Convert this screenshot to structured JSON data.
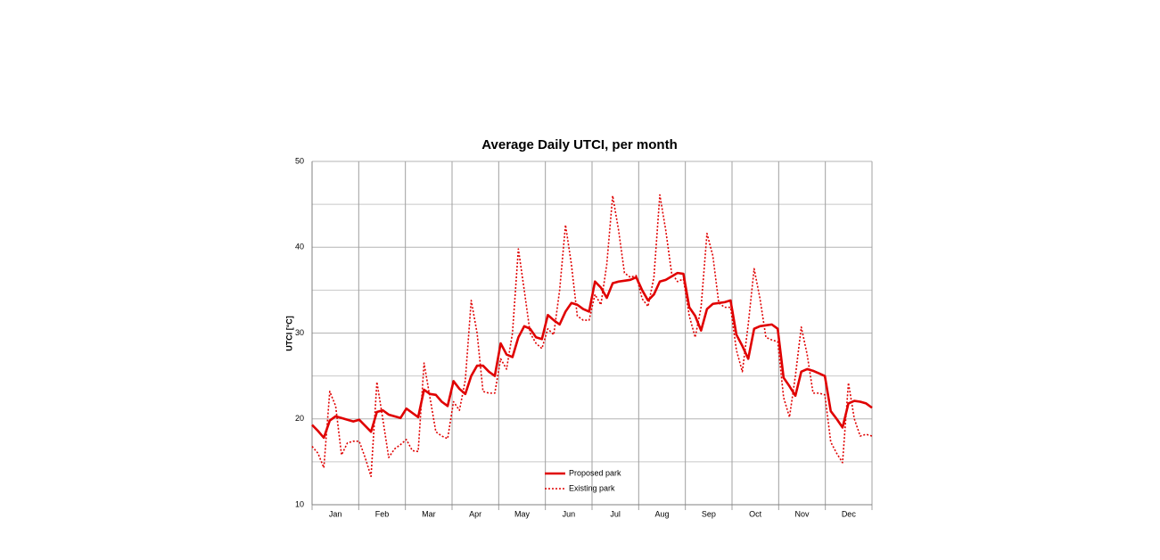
{
  "chart_data": {
    "type": "line",
    "title": "Average Daily UTCI, per month",
    "y_label": "UTCI [°C]",
    "categories": [
      null,
      null,
      null,
      null,
      "Jan",
      null,
      null,
      null,
      null,
      null,
      null,
      null,
      "Feb",
      null,
      null,
      null,
      null,
      null,
      null,
      null,
      "Mar",
      null,
      null,
      null,
      null,
      null,
      null,
      null,
      "Apr",
      null,
      null,
      null,
      null,
      null,
      null,
      null,
      "May",
      null,
      null,
      null,
      null,
      null,
      null,
      null,
      "Jun",
      null,
      null,
      null,
      null,
      null,
      null,
      null,
      "Jul",
      null,
      null,
      null,
      null,
      null,
      null,
      null,
      "Aug",
      null,
      null,
      null,
      null,
      null,
      null,
      null,
      "Sep",
      null,
      null,
      null,
      null,
      null,
      null,
      null,
      "Oct",
      null,
      null,
      null,
      null,
      null,
      null,
      null,
      "Nov",
      null,
      null,
      null,
      null,
      null,
      null,
      null,
      "Dec",
      null,
      null,
      null
    ],
    "series": [
      {
        "name": "Proposed park",
        "color": "#e00000",
        "style": "solid",
        "values": [
          19.3,
          18.6,
          17.8,
          19.8,
          20.3,
          20.1,
          19.9,
          19.7,
          19.9,
          19.2,
          18.5,
          20.8,
          21.0,
          20.5,
          20.3,
          20.1,
          21.2,
          20.7,
          20.2,
          23.4,
          22.9,
          22.8,
          22.0,
          21.5,
          24.4,
          23.5,
          22.9,
          25.0,
          26.2,
          26.2,
          25.5,
          25.0,
          28.8,
          27.5,
          27.2,
          29.5,
          30.8,
          30.5,
          29.5,
          29.3,
          32.1,
          31.5,
          31.0,
          32.5,
          33.5,
          33.3,
          32.8,
          32.5,
          36.0,
          35.3,
          34.1,
          35.8,
          36.0,
          36.1,
          36.2,
          36.5,
          35.0,
          33.8,
          34.5,
          36.0,
          36.2,
          36.6,
          37.0,
          36.9,
          33.0,
          32.0,
          30.3,
          32.8,
          33.4,
          33.5,
          33.6,
          33.8,
          29.8,
          28.5,
          27.0,
          30.5,
          30.8,
          30.9,
          31.0,
          30.5,
          24.8,
          23.8,
          22.7,
          25.5,
          25.8,
          25.6,
          25.3,
          25.0,
          20.9,
          20.0,
          19.0,
          21.8,
          22.1,
          22.0,
          21.8,
          21.3
        ]
      },
      {
        "name": "Existing park",
        "color": "#e00000",
        "style": "dotted",
        "values": [
          16.8,
          16.0,
          14.3,
          23.2,
          21.5,
          15.8,
          17.2,
          17.4,
          17.4,
          15.5,
          13.3,
          24.3,
          20.0,
          15.5,
          16.5,
          17.0,
          17.6,
          16.3,
          16.2,
          26.5,
          22.5,
          18.5,
          18.0,
          17.7,
          22.0,
          21.0,
          24.5,
          33.8,
          30.0,
          23.2,
          23.0,
          23.0,
          27.0,
          25.8,
          30.0,
          39.8,
          35.0,
          30.0,
          28.8,
          28.2,
          30.5,
          29.8,
          35.0,
          42.6,
          38.0,
          32.0,
          31.5,
          31.5,
          34.5,
          33.3,
          38.0,
          46.0,
          42.0,
          37.0,
          36.5,
          36.7,
          34.0,
          33.1,
          36.5,
          46.1,
          42.0,
          37.0,
          36.0,
          36.3,
          32.0,
          29.5,
          33.0,
          41.6,
          39.0,
          33.5,
          33.0,
          33.0,
          28.0,
          25.5,
          31.0,
          37.5,
          34.0,
          29.5,
          29.2,
          29.0,
          22.5,
          20.2,
          25.0,
          30.7,
          27.5,
          23.0,
          23.0,
          22.8,
          17.3,
          16.0,
          14.9,
          24.2,
          20.0,
          18.0,
          18.2,
          18.0
        ]
      }
    ],
    "ylim": [
      10,
      50
    ],
    "yticks": [
      10,
      20,
      30,
      40,
      50
    ],
    "grid": true,
    "legend": "bottom"
  }
}
